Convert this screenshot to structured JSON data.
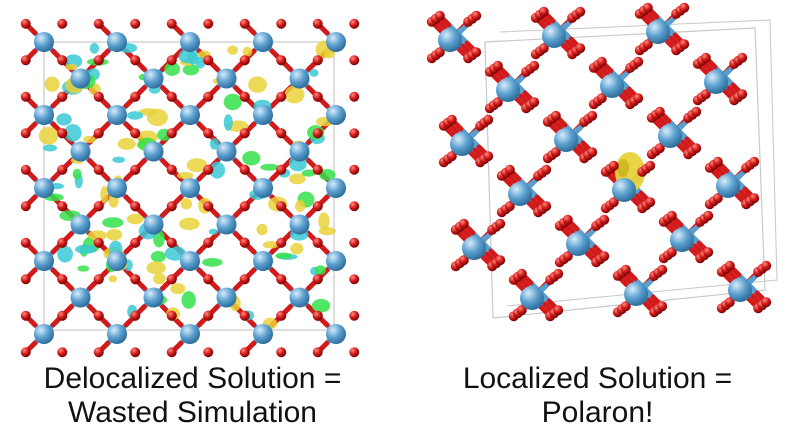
{
  "panels": [
    {
      "id": "left",
      "caption_line1": "Delocalized Solution =",
      "caption_line2": "Wasted Simulation",
      "density": "delocalized"
    },
    {
      "id": "right",
      "caption_line1": "Localized Solution =",
      "caption_line2": "Polaron!",
      "density": "localized"
    }
  ],
  "colors": {
    "metal_atom": "#5b9fcf",
    "oxygen_atom": "#d21a1a",
    "cell_box": "#c8c8c8",
    "density_yellow": "#e8d23a",
    "density_cyan": "#39c9d6",
    "density_green": "#35e04a"
  }
}
